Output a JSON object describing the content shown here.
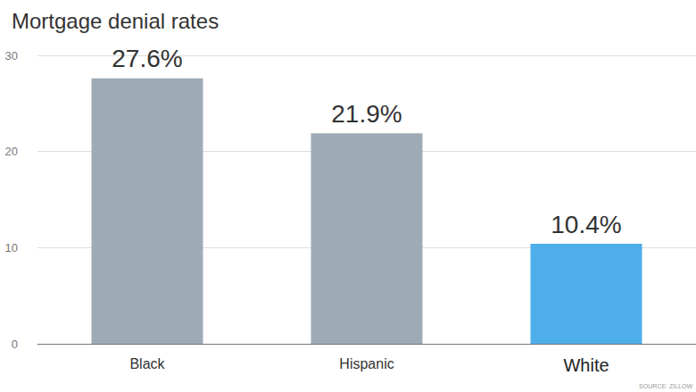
{
  "chart_data": {
    "type": "bar",
    "title": "Mortgage denial rates",
    "categories": [
      "Black",
      "Hispanic",
      "White"
    ],
    "values": [
      27.6,
      21.9,
      10.4
    ],
    "value_labels": [
      "27.6%",
      "21.9%",
      "10.4%"
    ],
    "colors": [
      "#9eabb7",
      "#9eabb7",
      "#4eaeea"
    ],
    "ylim": [
      0,
      30
    ],
    "yticks": [
      0,
      10,
      20,
      30
    ],
    "grid": true,
    "data_labels": true,
    "annotations": [
      "SOURCE: ZILLOW"
    ]
  }
}
